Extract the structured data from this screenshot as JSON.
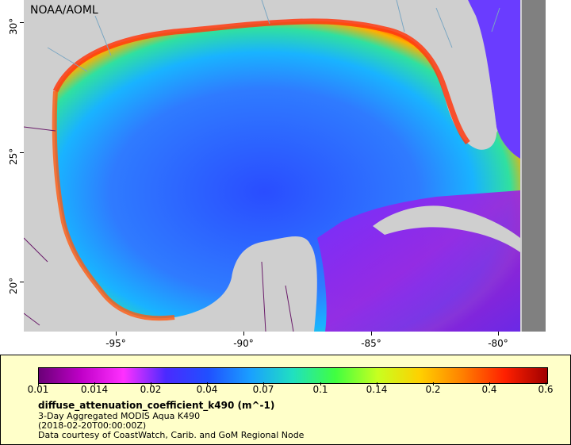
{
  "map": {
    "credit": "NOAA/AOML",
    "lat_ticks": [
      "30°",
      "25°",
      "20°"
    ],
    "lon_ticks": [
      "-95°",
      "-90°",
      "-85°",
      "-80°"
    ],
    "colors": {
      "land": "#cfcfcf",
      "no_data": "#808080",
      "borders": "#6a1b6a",
      "rivers": "#7aa6c2"
    }
  },
  "legend": {
    "colorbar_colors": [
      "#6a0077",
      "#c000c8",
      "#ff30ff",
      "#4a2aff",
      "#2050ff",
      "#1aa0ff",
      "#20e0c0",
      "#40ff40",
      "#c8ff20",
      "#ffd000",
      "#ff8000",
      "#ff2000",
      "#a00000"
    ],
    "ticks": [
      "0.01",
      "0.014",
      "0.02",
      "0.04",
      "0.07",
      "0.1",
      "0.14",
      "0.2",
      "0.4",
      "0.6"
    ],
    "title": "diffuse_attenuation_coefficient_k490 (m^-1)",
    "line1": "3-Day Aggregated MODIS Aqua K490",
    "line2": "(2018-02-20T00:00:00Z)",
    "line3": "Data courtesy of CoastWatch, Carib. and GoM Regional Node"
  }
}
